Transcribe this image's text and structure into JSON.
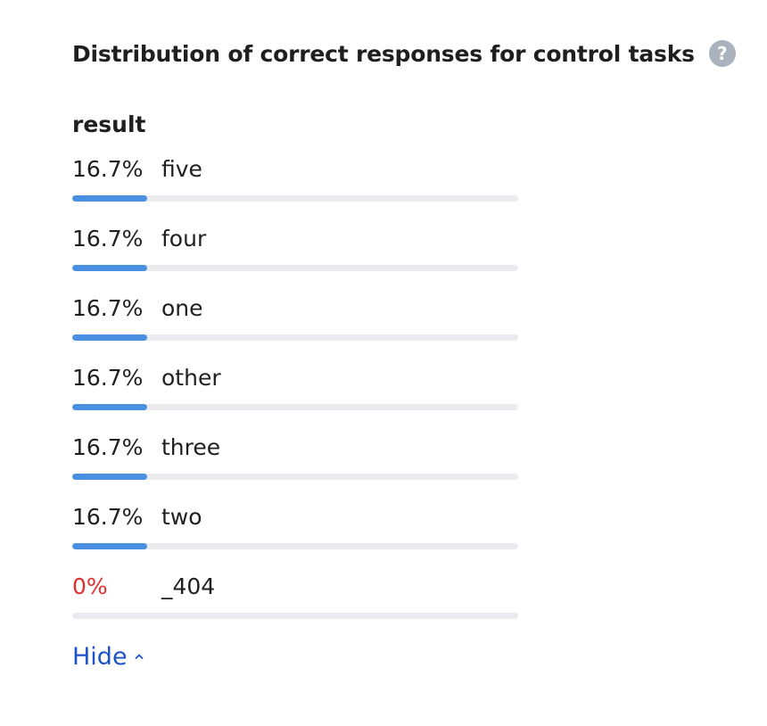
{
  "header": {
    "title": "Distribution of correct responses for control tasks",
    "help_icon": "question-circle-icon"
  },
  "section": {
    "title": "result"
  },
  "rows": [
    {
      "percent": "16.7%",
      "label": "five",
      "fraction": 0.167
    },
    {
      "percent": "16.7%",
      "label": "four",
      "fraction": 0.167
    },
    {
      "percent": "16.7%",
      "label": "one",
      "fraction": 0.167
    },
    {
      "percent": "16.7%",
      "label": "other",
      "fraction": 0.167
    },
    {
      "percent": "16.7%",
      "label": "three",
      "fraction": 0.167
    },
    {
      "percent": "16.7%",
      "label": "two",
      "fraction": 0.167
    },
    {
      "percent": "0%",
      "label": "_404",
      "fraction": 0
    }
  ],
  "footer": {
    "hide_label": "Hide",
    "hide_icon": "chevron-up-icon"
  },
  "colors": {
    "bar_fill": "#4a90e2",
    "bar_track": "#ebebef",
    "zero_percent": "#e02f2f",
    "link": "#1f53c5"
  }
}
